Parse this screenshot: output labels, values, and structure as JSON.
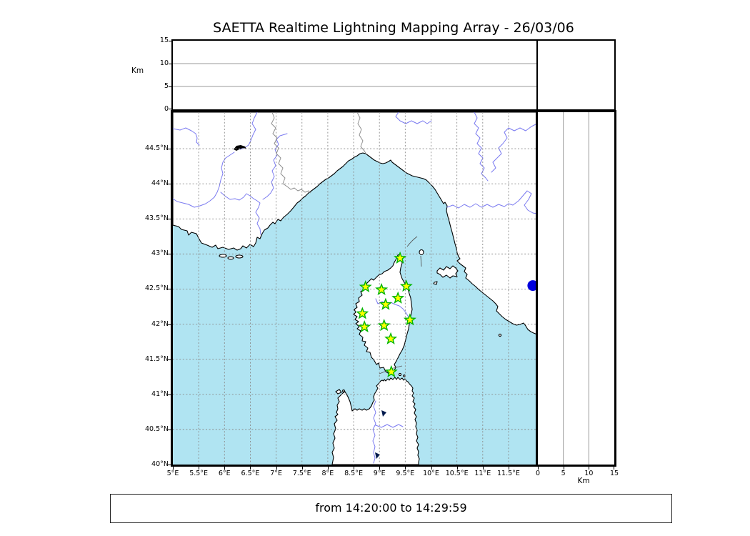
{
  "title": "SAETTA Realtime Lightning Mapping Array - 26/03/06",
  "footer": {
    "text": "from 14:20:00 to 14:29:59"
  },
  "colors": {
    "sea": "#b0e4f2",
    "land": "#ffffff",
    "coastline": "#000000",
    "river": "#7a7af0",
    "grid": "#8a8a8a",
    "station_fill": "#ffff00",
    "station_stroke": "#00b400",
    "event_dot": "#0000dd"
  },
  "chart_data": {
    "type": "map",
    "title": "SAETTA Realtime Lightning Mapping Array - 26/03/06",
    "time_window": {
      "from": "14:20:00",
      "to": "14:29:59"
    },
    "region": "Western Mediterranean: southern France, northwest Italy, Corsica, northern Sardinia",
    "panels": {
      "altitude_vs_longitude": {
        "position": "top",
        "ylabel": "Km",
        "ylim": [
          0,
          15
        ],
        "ticks": [
          {
            "label": "0",
            "value": 0
          },
          {
            "label": "5",
            "value": 5
          },
          {
            "label": "10",
            "value": 10
          },
          {
            "label": "15",
            "value": 15
          }
        ],
        "content": "empty"
      },
      "map": {
        "position": "center",
        "lon_range_deg_e": [
          5,
          12.05
        ],
        "lat_range_deg_n": [
          40,
          45.02
        ],
        "grid": "0.5 degree dashed",
        "lon_ticks": [
          {
            "label": "5°E",
            "value": 5
          },
          {
            "label": "5.5°E",
            "value": 5.5
          },
          {
            "label": "6°E",
            "value": 6
          },
          {
            "label": "6.5°E",
            "value": 6.5
          },
          {
            "label": "7°E",
            "value": 7
          },
          {
            "label": "7.5°E",
            "value": 7.5
          },
          {
            "label": "8°E",
            "value": 8
          },
          {
            "label": "8.5°E",
            "value": 8.5
          },
          {
            "label": "9°E",
            "value": 9
          },
          {
            "label": "9.5°E",
            "value": 9.5
          },
          {
            "label": "10°E",
            "value": 10
          },
          {
            "label": "10.5°E",
            "value": 10.5
          },
          {
            "label": "11°E",
            "value": 11
          },
          {
            "label": "11.5°E",
            "value": 11.5
          }
        ],
        "lat_ticks": [
          {
            "label": "40°N",
            "value": 40
          },
          {
            "label": "40.5°N",
            "value": 40.5
          },
          {
            "label": "41°N",
            "value": 41
          },
          {
            "label": "41.5°N",
            "value": 41.5
          },
          {
            "label": "42°N",
            "value": 42
          },
          {
            "label": "42.5°N",
            "value": 42.5
          },
          {
            "label": "43°N",
            "value": 43
          },
          {
            "label": "43.5°N",
            "value": 43.5
          },
          {
            "label": "44°N",
            "value": 44
          },
          {
            "label": "44.5°N",
            "value": 44.5
          }
        ]
      },
      "altitude_vs_latitude": {
        "position": "right",
        "xlabel": "Km",
        "xlim": [
          0,
          15
        ],
        "ticks": [
          {
            "label": "0",
            "value": 0
          },
          {
            "label": "5",
            "value": 5
          },
          {
            "label": "10",
            "value": 10
          },
          {
            "label": "15",
            "value": 15
          }
        ],
        "content": "empty"
      }
    },
    "stations": [
      {
        "lon": 9.4,
        "lat": 42.94
      },
      {
        "lon": 8.73,
        "lat": 42.53
      },
      {
        "lon": 9.04,
        "lat": 42.49
      },
      {
        "lon": 9.52,
        "lat": 42.54
      },
      {
        "lon": 9.36,
        "lat": 42.37
      },
      {
        "lon": 9.12,
        "lat": 42.28
      },
      {
        "lon": 8.67,
        "lat": 42.15
      },
      {
        "lon": 9.59,
        "lat": 42.06
      },
      {
        "lon": 8.71,
        "lat": 41.96
      },
      {
        "lon": 9.09,
        "lat": 41.98
      },
      {
        "lon": 9.22,
        "lat": 41.79
      },
      {
        "lon": 9.23,
        "lat": 41.32
      }
    ],
    "stations_marker": "yellow star with green outline",
    "events": [
      {
        "lon": 11.97,
        "lat": 42.55
      }
    ],
    "events_marker": "blue filled circle"
  }
}
